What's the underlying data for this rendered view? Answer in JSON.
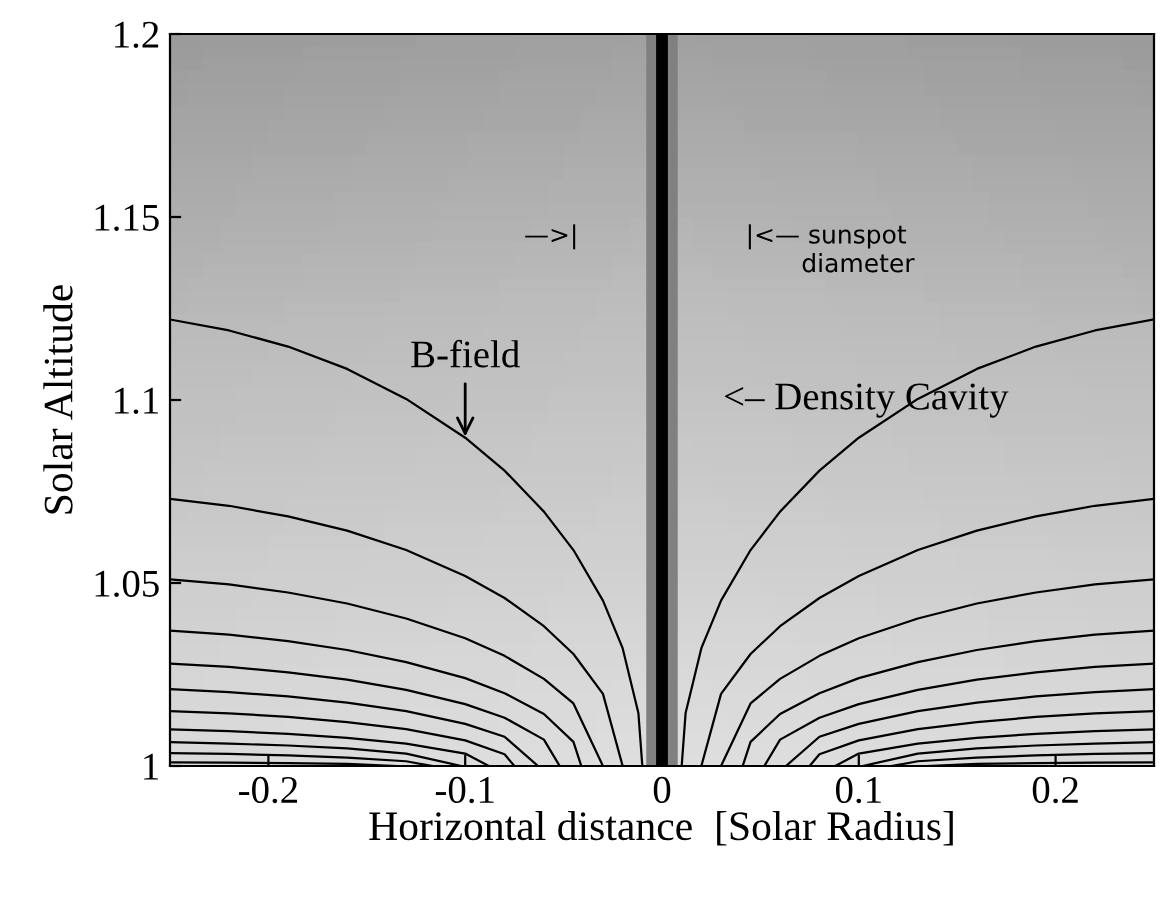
{
  "chart_data": {
    "type": "line",
    "xlabel": "Horizontal distance  [Solar Radius]",
    "ylabel": "Solar Altitude",
    "xlim": [
      -0.25,
      0.25
    ],
    "xticks": [
      {
        "value": -0.2,
        "label": "-0.2"
      },
      {
        "value": -0.1,
        "label": "-0.1"
      },
      0,
      0.1,
      0.2
    ],
    "ylim": [
      1,
      1.2
    ],
    "yticks": [
      1,
      1.05,
      1.1,
      1.15,
      1.2
    ],
    "grid": false,
    "marker": "none",
    "line_style": "solid",
    "bands": [
      {
        "axis": "x",
        "from": -0.008,
        "to": 0.008,
        "color": "#808080"
      },
      {
        "axis": "x",
        "from": -0.003,
        "to": 0.003,
        "color": "#000000"
      }
    ],
    "annotations": [
      {
        "text": "B-field",
        "x": -0.1,
        "y": 1.09
      },
      {
        "text": "<– Density Cavity",
        "x": 0.0,
        "y": 1.1
      },
      "—>|",
      "|<— sunspot\n       diameter"
    ],
    "series": [
      {
        "color": "#000000",
        "x": [
          -0.25,
          -0.22,
          -0.19,
          -0.16,
          -0.13,
          -0.1,
          -0.08,
          -0.06,
          -0.045,
          -0.03,
          -0.02,
          -0.012,
          -0.01
        ],
        "values": [
          1.122,
          1.119,
          1.1146,
          1.1085,
          1.1003,
          1.0897,
          1.0807,
          1.0695,
          1.059,
          1.0452,
          1.0322,
          1.0145,
          1.0
        ]
      },
      {
        "color": "#000000",
        "x": [
          -0.25,
          -0.22,
          -0.19,
          -0.16,
          -0.13,
          -0.1,
          -0.08,
          -0.06,
          -0.045,
          -0.03,
          -0.02
        ],
        "values": [
          1.073,
          1.0711,
          1.0682,
          1.0643,
          1.059,
          1.0519,
          1.0459,
          1.0382,
          1.0306,
          1.0197,
          1.0
        ]
      },
      {
        "color": "#000000",
        "x": [
          -0.25,
          -0.22,
          -0.19,
          -0.16,
          -0.13,
          -0.1,
          -0.08,
          -0.06,
          -0.045,
          -0.03
        ],
        "values": [
          1.051,
          1.0496,
          1.0474,
          1.0444,
          1.0403,
          1.0349,
          1.0301,
          1.0238,
          1.0171,
          1.0
        ]
      },
      {
        "color": "#000000",
        "x": [
          -0.25,
          -0.22,
          -0.19,
          -0.16,
          -0.13,
          -0.1,
          -0.08,
          -0.06,
          -0.045,
          -0.041
        ],
        "values": [
          1.037,
          1.0359,
          1.0341,
          1.0317,
          1.0284,
          1.024,
          1.0199,
          1.0142,
          1.0066,
          1.0
        ]
      },
      {
        "color": "#000000",
        "x": [
          -0.25,
          -0.22,
          -0.19,
          -0.16,
          -0.13,
          -0.1,
          -0.08,
          -0.06,
          -0.052
        ],
        "values": [
          1.028,
          1.0271,
          1.0256,
          1.0236,
          1.0208,
          1.0169,
          1.0132,
          1.0072,
          1.0
        ]
      },
      {
        "color": "#000000",
        "x": [
          -0.25,
          -0.22,
          -0.19,
          -0.16,
          -0.13,
          -0.1,
          -0.08,
          -0.063
        ],
        "values": [
          1.021,
          1.0202,
          1.019,
          1.0173,
          1.015,
          1.0115,
          1.008,
          1.0
        ]
      },
      {
        "color": "#000000",
        "x": [
          -0.25,
          -0.22,
          -0.19,
          -0.16,
          -0.13,
          -0.1,
          -0.08,
          -0.075
        ],
        "values": [
          1.015,
          1.0144,
          1.0134,
          1.012,
          1.0101,
          1.007,
          1.0032,
          1.0
        ]
      },
      {
        "color": "#000000",
        "x": [
          -0.25,
          -0.22,
          -0.19,
          -0.16,
          -0.13,
          -0.1,
          -0.088
        ],
        "values": [
          1.01,
          1.0095,
          1.0088,
          1.0077,
          1.0061,
          1.0034,
          1.0
        ]
      },
      {
        "color": "#000000",
        "x": [
          -0.25,
          -0.22,
          -0.19,
          -0.16,
          -0.13,
          -0.102
        ],
        "values": [
          1.0065,
          1.0061,
          1.0056,
          1.0048,
          1.0034,
          1.0
        ]
      },
      {
        "color": "#000000",
        "x": [
          -0.25,
          -0.22,
          -0.19,
          -0.16,
          -0.13,
          -0.117
        ],
        "values": [
          1.0035,
          1.0033,
          1.0029,
          1.0023,
          1.0013,
          1.0
        ]
      },
      {
        "color": "#000000",
        "x": [
          -0.25,
          -0.22,
          -0.19,
          -0.16,
          -0.135
        ],
        "values": [
          1.001,
          1.0009,
          1.0008,
          1.0006,
          1.0
        ]
      },
      {
        "color": "#000000",
        "x": [
          0.25,
          0.22,
          0.19,
          0.16,
          0.13,
          0.1,
          0.08,
          0.06,
          0.045,
          0.03,
          0.02,
          0.012,
          0.01
        ],
        "values": [
          1.122,
          1.119,
          1.1146,
          1.1085,
          1.1003,
          1.0897,
          1.0807,
          1.0695,
          1.059,
          1.0452,
          1.0322,
          1.0145,
          1.0
        ]
      },
      {
        "color": "#000000",
        "x": [
          0.25,
          0.22,
          0.19,
          0.16,
          0.13,
          0.1,
          0.08,
          0.06,
          0.045,
          0.03,
          0.02
        ],
        "values": [
          1.073,
          1.0711,
          1.0682,
          1.0643,
          1.059,
          1.0519,
          1.0459,
          1.0382,
          1.0306,
          1.0197,
          1.0
        ]
      },
      {
        "color": "#000000",
        "x": [
          0.25,
          0.22,
          0.19,
          0.16,
          0.13,
          0.1,
          0.08,
          0.06,
          0.045,
          0.03
        ],
        "values": [
          1.051,
          1.0496,
          1.0474,
          1.0444,
          1.0403,
          1.0349,
          1.0301,
          1.0238,
          1.0171,
          1.0
        ]
      },
      {
        "color": "#000000",
        "x": [
          0.25,
          0.22,
          0.19,
          0.16,
          0.13,
          0.1,
          0.08,
          0.06,
          0.045,
          0.041
        ],
        "values": [
          1.037,
          1.0359,
          1.0341,
          1.0317,
          1.0284,
          1.024,
          1.0199,
          1.0142,
          1.0066,
          1.0
        ]
      },
      {
        "color": "#000000",
        "x": [
          0.25,
          0.22,
          0.19,
          0.16,
          0.13,
          0.1,
          0.08,
          0.06,
          0.052
        ],
        "values": [
          1.028,
          1.0271,
          1.0256,
          1.0236,
          1.0208,
          1.0169,
          1.0132,
          1.0072,
          1.0
        ]
      },
      {
        "color": "#000000",
        "x": [
          0.25,
          0.22,
          0.19,
          0.16,
          0.13,
          0.1,
          0.08,
          0.063
        ],
        "values": [
          1.021,
          1.0202,
          1.019,
          1.0173,
          1.015,
          1.0115,
          1.008,
          1.0
        ]
      },
      {
        "color": "#000000",
        "x": [
          0.25,
          0.22,
          0.19,
          0.16,
          0.13,
          0.1,
          0.08,
          0.075
        ],
        "values": [
          1.015,
          1.0144,
          1.0134,
          1.012,
          1.0101,
          1.007,
          1.0032,
          1.0
        ]
      },
      {
        "color": "#000000",
        "x": [
          0.25,
          0.22,
          0.19,
          0.16,
          0.13,
          0.1,
          0.088
        ],
        "values": [
          1.01,
          1.0095,
          1.0088,
          1.0077,
          1.0061,
          1.0034,
          1.0
        ]
      },
      {
        "color": "#000000",
        "x": [
          0.25,
          0.22,
          0.19,
          0.16,
          0.13,
          0.102
        ],
        "values": [
          1.0065,
          1.0061,
          1.0056,
          1.0048,
          1.0034,
          1.0
        ]
      },
      {
        "color": "#000000",
        "x": [
          0.25,
          0.22,
          0.19,
          0.16,
          0.13,
          0.117
        ],
        "values": [
          1.0035,
          1.0033,
          1.0029,
          1.0023,
          1.0013,
          1.0
        ]
      },
      {
        "color": "#000000",
        "x": [
          0.25,
          0.22,
          0.19,
          0.16,
          0.135
        ],
        "values": [
          1.001,
          1.0009,
          1.0008,
          1.0006,
          1.0
        ]
      }
    ]
  }
}
